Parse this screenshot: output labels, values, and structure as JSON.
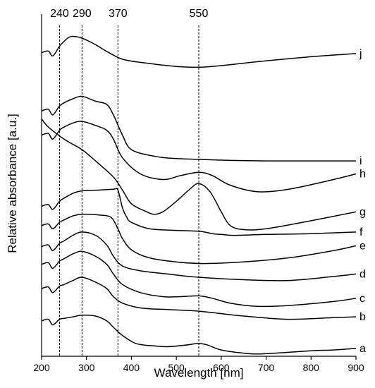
{
  "chart_data": {
    "type": "line",
    "xlabel": "Wavelength [nm]",
    "ylabel": "Relative absorbance [a.u.]",
    "xlim": [
      200,
      900
    ],
    "xticks": [
      200,
      300,
      400,
      500,
      600,
      700,
      800,
      900
    ],
    "reference_lines": [
      240,
      290,
      370,
      550
    ],
    "reference_line_labels": [
      "240",
      "290",
      "370",
      "550"
    ],
    "y_tick_labels": "none",
    "grid": false,
    "legend": "none",
    "series": [
      {
        "name": "a",
        "x": [
          200,
          215,
          225,
          240,
          250,
          270,
          290,
          320,
          345,
          360,
          380,
          410,
          450,
          480,
          520,
          550,
          570,
          600,
          650,
          680,
          720,
          800,
          850,
          900
        ],
        "y": [
          0.7,
          0.72,
          0.65,
          0.72,
          0.73,
          0.75,
          0.77,
          0.76,
          0.7,
          0.62,
          0.52,
          0.42,
          0.39,
          0.38,
          0.4,
          0.42,
          0.4,
          0.34,
          0.3,
          0.29,
          0.3,
          0.33,
          0.34,
          0.36
        ]
      },
      {
        "name": "b",
        "x": [
          200,
          215,
          225,
          240,
          250,
          270,
          290,
          320,
          345,
          360,
          380,
          420,
          480,
          550,
          650,
          750,
          850,
          900
        ],
        "y": [
          1.1,
          1.12,
          1.05,
          1.13,
          1.15,
          1.2,
          1.24,
          1.18,
          1.1,
          1.0,
          0.92,
          0.86,
          0.84,
          0.82,
          0.76,
          0.72,
          0.74,
          0.75
        ]
      },
      {
        "name": "c",
        "x": [
          200,
          215,
          225,
          240,
          250,
          270,
          290,
          320,
          345,
          360,
          380,
          420,
          470,
          510,
          550,
          580,
          620,
          680,
          750,
          850,
          900
        ],
        "y": [
          1.4,
          1.42,
          1.35,
          1.44,
          1.47,
          1.53,
          1.56,
          1.5,
          1.4,
          1.28,
          1.15,
          1.05,
          1.0,
          1.0,
          1.01,
          0.98,
          0.92,
          0.88,
          0.89,
          0.94,
          0.98
        ]
      },
      {
        "name": "d",
        "x": [
          200,
          215,
          225,
          240,
          250,
          270,
          290,
          320,
          345,
          360,
          380,
          420,
          480,
          550,
          650,
          750,
          850,
          900
        ],
        "y": [
          1.62,
          1.64,
          1.57,
          1.66,
          1.69,
          1.76,
          1.8,
          1.76,
          1.64,
          1.5,
          1.38,
          1.32,
          1.28,
          1.24,
          1.21,
          1.2,
          1.25,
          1.28
        ]
      },
      {
        "name": "e",
        "x": [
          200,
          215,
          225,
          240,
          250,
          270,
          290,
          330,
          355,
          370,
          380,
          400,
          440,
          500,
          560,
          650,
          750,
          850,
          900
        ],
        "y": [
          1.88,
          1.9,
          1.84,
          1.92,
          1.95,
          2.0,
          2.02,
          2.01,
          1.98,
          1.84,
          1.72,
          1.58,
          1.48,
          1.43,
          1.41,
          1.43,
          1.48,
          1.57,
          1.63
        ]
      },
      {
        "name": "f",
        "x": [
          200,
          215,
          225,
          240,
          250,
          270,
          290,
          330,
          360,
          370,
          380,
          390,
          400,
          440,
          500,
          550,
          580,
          600,
          620,
          640,
          700,
          800,
          900
        ],
        "y": [
          2.12,
          2.14,
          2.08,
          2.18,
          2.22,
          2.28,
          2.31,
          2.32,
          2.33,
          2.32,
          2.1,
          1.98,
          1.92,
          1.84,
          1.82,
          1.81,
          1.78,
          1.77,
          1.76,
          1.76,
          1.77,
          1.78,
          1.8
        ]
      },
      {
        "name": "g",
        "x": [
          200,
          215,
          250,
          290,
          320,
          360,
          380,
          400,
          430,
          450,
          470,
          500,
          530,
          550,
          575,
          600,
          620,
          650,
          700,
          800,
          900
        ],
        "y": [
          3.2,
          3.1,
          2.95,
          2.82,
          2.68,
          2.48,
          2.32,
          2.15,
          2.06,
          2.02,
          2.05,
          2.18,
          2.33,
          2.4,
          2.3,
          2.05,
          1.88,
          1.83,
          1.84,
          1.94,
          2.05
        ]
      },
      {
        "name": "h",
        "x": [
          200,
          215,
          225,
          240,
          250,
          270,
          290,
          320,
          345,
          360,
          380,
          420,
          470,
          510,
          550,
          580,
          620,
          680,
          750,
          850,
          900
        ],
        "y": [
          3.0,
          3.02,
          2.95,
          3.06,
          3.1,
          3.15,
          3.17,
          3.12,
          3.06,
          2.95,
          2.72,
          2.52,
          2.45,
          2.5,
          2.54,
          2.5,
          2.38,
          2.3,
          2.33,
          2.45,
          2.52
        ]
      },
      {
        "name": "i",
        "x": [
          200,
          215,
          225,
          240,
          250,
          270,
          290,
          320,
          345,
          360,
          380,
          400,
          450,
          500,
          600,
          700,
          800,
          900
        ],
        "y": [
          3.3,
          3.32,
          3.25,
          3.36,
          3.4,
          3.45,
          3.48,
          3.42,
          3.38,
          3.25,
          3.0,
          2.82,
          2.74,
          2.71,
          2.69,
          2.68,
          2.68,
          2.68
        ]
      },
      {
        "name": "j",
        "x": [
          200,
          215,
          225,
          240,
          250,
          265,
          290,
          320,
          350,
          380,
          420,
          500,
          550,
          600,
          650,
          700,
          800,
          900
        ],
        "y": [
          4.02,
          4.04,
          3.98,
          4.1,
          4.16,
          4.22,
          4.2,
          4.12,
          4.02,
          3.94,
          3.9,
          3.85,
          3.84,
          3.86,
          3.89,
          3.92,
          3.97,
          4.01
        ]
      }
    ]
  }
}
